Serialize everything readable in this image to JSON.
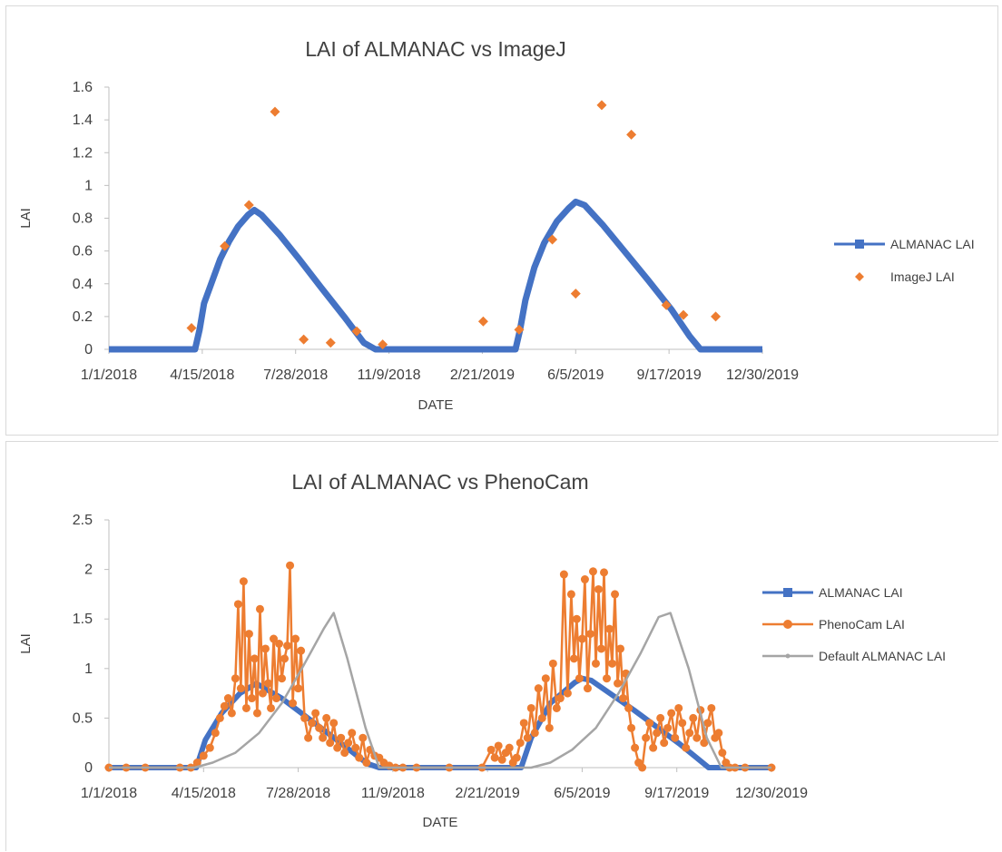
{
  "charts": [
    {
      "type": "scatter",
      "title": "LAI of ALMANAC vs ImageJ",
      "xlabel": "DATE",
      "ylabel": "LAI",
      "ylim": [
        0,
        1.6
      ],
      "yticks": [
        "0",
        "0.2",
        "0.4",
        "0.6",
        "0.8",
        "1",
        "1.2",
        "1.4",
        "1.6"
      ],
      "xlim": [
        "2018-01-01",
        "2019-12-30"
      ],
      "xticks": [
        "1/1/2018",
        "4/15/2018",
        "7/28/2018",
        "11/9/2018",
        "2/21/2019",
        "6/5/2019",
        "9/17/2019",
        "12/30/2019"
      ],
      "legend_position": "right",
      "series": [
        {
          "name": "ALMANAC LAI",
          "kind": "line",
          "color": "#4472c4",
          "x": [
            "2018-01-01",
            "2018-04-07",
            "2018-04-12",
            "2018-04-17",
            "2018-04-25",
            "2018-05-05",
            "2018-05-15",
            "2018-05-25",
            "2018-06-05",
            "2018-06-12",
            "2018-06-20",
            "2018-07-10",
            "2018-08-01",
            "2018-08-25",
            "2018-09-20",
            "2018-10-12",
            "2018-10-25",
            "2019-03-30",
            "2019-04-04",
            "2019-04-10",
            "2019-04-20",
            "2019-05-01",
            "2019-05-15",
            "2019-05-28",
            "2019-06-05",
            "2019-06-15",
            "2019-07-05",
            "2019-08-01",
            "2019-08-25",
            "2019-09-20",
            "2019-10-10",
            "2019-10-22",
            "2019-12-30"
          ],
          "y": [
            0,
            0,
            0.12,
            0.28,
            0.4,
            0.55,
            0.66,
            0.75,
            0.82,
            0.85,
            0.82,
            0.7,
            0.55,
            0.38,
            0.2,
            0.04,
            0,
            0,
            0.12,
            0.3,
            0.5,
            0.65,
            0.78,
            0.86,
            0.9,
            0.88,
            0.76,
            0.58,
            0.42,
            0.24,
            0.08,
            0,
            0
          ]
        },
        {
          "name": "ImageJ LAI",
          "kind": "scatter",
          "color": "#ed7d31",
          "x": [
            "2018-04-03",
            "2018-05-10",
            "2018-06-06",
            "2018-07-05",
            "2018-08-06",
            "2018-09-05",
            "2018-10-04",
            "2018-11-02",
            "2019-02-22",
            "2019-04-03",
            "2019-05-10",
            "2019-06-05",
            "2019-07-04",
            "2019-08-06",
            "2019-09-14",
            "2019-10-03",
            "2019-11-08"
          ],
          "y": [
            0.13,
            0.63,
            0.88,
            1.45,
            0.06,
            0.04,
            0.11,
            0.03,
            0.17,
            0.12,
            0.67,
            0.34,
            1.49,
            1.31,
            0.27,
            0.21,
            0.2
          ]
        }
      ]
    },
    {
      "type": "line",
      "title": "LAI of ALMANAC vs PhenoCam",
      "xlabel": "DATE",
      "ylabel": "LAI",
      "ylim": [
        0,
        2.5
      ],
      "yticks": [
        "0",
        "0.5",
        "1",
        "1.5",
        "2",
        "2.5"
      ],
      "xlim": [
        "2018-01-01",
        "2019-12-30"
      ],
      "xticks": [
        "1/1/2018",
        "4/15/2018",
        "7/28/2018",
        "11/9/2018",
        "2/21/2019",
        "6/5/2019",
        "9/17/2019",
        "12/30/2019"
      ],
      "legend_position": "right",
      "series": [
        {
          "name": "ALMANAC LAI",
          "kind": "line",
          "color": "#4472c4",
          "x": [
            "2018-01-01",
            "2018-04-07",
            "2018-04-17",
            "2018-05-05",
            "2018-05-25",
            "2018-06-12",
            "2018-07-10",
            "2018-08-25",
            "2018-10-12",
            "2018-10-25",
            "2019-03-30",
            "2019-04-10",
            "2019-05-01",
            "2019-05-28",
            "2019-06-05",
            "2019-06-15",
            "2019-08-01",
            "2019-09-20",
            "2019-10-22",
            "2019-12-30"
          ],
          "y": [
            0,
            0,
            0.28,
            0.55,
            0.75,
            0.85,
            0.7,
            0.38,
            0.04,
            0,
            0,
            0.3,
            0.65,
            0.86,
            0.9,
            0.88,
            0.58,
            0.24,
            0,
            0
          ]
        },
        {
          "name": "PhenoCam LAI",
          "kind": "line-markers",
          "color": "#ed7d31",
          "x": [
            "2018-01-01",
            "2018-01-20",
            "2018-02-10",
            "2018-03-20",
            "2018-04-01",
            "2018-04-08",
            "2018-04-15",
            "2018-04-22",
            "2018-04-28",
            "2018-05-03",
            "2018-05-08",
            "2018-05-12",
            "2018-05-16",
            "2018-05-20",
            "2018-05-23",
            "2018-05-26",
            "2018-05-29",
            "2018-06-01",
            "2018-06-04",
            "2018-06-07",
            "2018-06-10",
            "2018-06-13",
            "2018-06-16",
            "2018-06-19",
            "2018-06-22",
            "2018-06-25",
            "2018-06-28",
            "2018-07-01",
            "2018-07-04",
            "2018-07-07",
            "2018-07-10",
            "2018-07-13",
            "2018-07-16",
            "2018-07-19",
            "2018-07-22",
            "2018-07-25",
            "2018-07-28",
            "2018-07-31",
            "2018-08-04",
            "2018-08-08",
            "2018-08-12",
            "2018-08-16",
            "2018-08-20",
            "2018-08-24",
            "2018-08-28",
            "2018-09-01",
            "2018-09-05",
            "2018-09-09",
            "2018-09-13",
            "2018-09-17",
            "2018-09-21",
            "2018-09-25",
            "2018-09-29",
            "2018-10-03",
            "2018-10-07",
            "2018-10-11",
            "2018-10-15",
            "2018-10-20",
            "2018-10-25",
            "2018-10-30",
            "2018-11-05",
            "2018-11-12",
            "2018-11-20",
            "2018-12-05",
            "2019-01-10",
            "2019-02-15",
            "2019-02-25",
            "2019-03-01",
            "2019-03-05",
            "2019-03-09",
            "2019-03-13",
            "2019-03-17",
            "2019-03-21",
            "2019-03-25",
            "2019-03-29",
            "2019-04-02",
            "2019-04-06",
            "2019-04-10",
            "2019-04-14",
            "2019-04-18",
            "2019-04-22",
            "2019-04-26",
            "2019-04-30",
            "2019-05-04",
            "2019-05-08",
            "2019-05-12",
            "2019-05-16",
            "2019-05-20",
            "2019-05-24",
            "2019-05-27",
            "2019-05-30",
            "2019-06-02",
            "2019-06-05",
            "2019-06-08",
            "2019-06-11",
            "2019-06-14",
            "2019-06-17",
            "2019-06-20",
            "2019-06-23",
            "2019-06-26",
            "2019-06-29",
            "2019-07-02",
            "2019-07-05",
            "2019-07-08",
            "2019-07-11",
            "2019-07-14",
            "2019-07-17",
            "2019-07-20",
            "2019-07-23",
            "2019-07-26",
            "2019-07-29",
            "2019-08-02",
            "2019-08-06",
            "2019-08-10",
            "2019-08-14",
            "2019-08-18",
            "2019-08-22",
            "2019-08-26",
            "2019-08-30",
            "2019-09-03",
            "2019-09-07",
            "2019-09-11",
            "2019-09-15",
            "2019-09-19",
            "2019-09-23",
            "2019-09-27",
            "2019-10-01",
            "2019-10-05",
            "2019-10-09",
            "2019-10-13",
            "2019-10-17",
            "2019-10-21",
            "2019-10-25",
            "2019-10-29",
            "2019-11-02",
            "2019-11-06",
            "2019-11-10",
            "2019-11-14",
            "2019-11-20",
            "2019-12-01",
            "2019-12-30"
          ],
          "y": [
            0,
            0,
            0,
            0,
            0,
            0.05,
            0.12,
            0.2,
            0.35,
            0.5,
            0.62,
            0.7,
            0.55,
            0.9,
            1.65,
            0.8,
            1.88,
            0.6,
            1.35,
            0.7,
            1.1,
            0.55,
            1.6,
            0.75,
            1.2,
            0.85,
            0.6,
            1.3,
            0.7,
            1.25,
            0.9,
            1.1,
            1.23,
            2.04,
            0.65,
            1.3,
            0.8,
            1.18,
            0.5,
            0.3,
            0.45,
            0.55,
            0.4,
            0.3,
            0.5,
            0.25,
            0.45,
            0.2,
            0.3,
            0.15,
            0.25,
            0.35,
            0.2,
            0.1,
            0.3,
            0.05,
            0.18,
            0.12,
            0.1,
            0.05,
            0.02,
            0,
            0,
            0,
            0,
            0,
            0.18,
            0.1,
            0.22,
            0.08,
            0.15,
            0.2,
            0.05,
            0.1,
            0.25,
            0.45,
            0.3,
            0.6,
            0.35,
            0.8,
            0.5,
            0.9,
            0.4,
            1.05,
            0.6,
            0.7,
            1.95,
            0.75,
            1.75,
            1.1,
            1.5,
            0.9,
            1.3,
            1.9,
            0.8,
            1.35,
            1.98,
            1.05,
            1.8,
            1.2,
            1.97,
            0.9,
            1.4,
            1.05,
            1.75,
            0.85,
            1.2,
            0.7,
            0.95,
            0.6,
            0.4,
            0.2,
            0.05,
            0,
            0.3,
            0.45,
            0.2,
            0.35,
            0.5,
            0.25,
            0.4,
            0.55,
            0.3,
            0.6,
            0.45,
            0.2,
            0.35,
            0.5,
            0.3,
            0.58,
            0.25,
            0.45,
            0.6,
            0.3,
            0.35,
            0.15,
            0.05,
            0,
            0,
            0,
            0
          ]
        },
        {
          "name": "Default ALMANAC LAI",
          "kind": "line",
          "color": "#a5a5a5",
          "x": [
            "2018-01-01",
            "2018-04-05",
            "2018-04-25",
            "2018-05-20",
            "2018-06-15",
            "2018-07-10",
            "2018-08-01",
            "2018-08-25",
            "2018-09-05",
            "2018-09-20",
            "2018-10-10",
            "2018-10-25",
            "2019-04-10",
            "2019-05-01",
            "2019-05-25",
            "2019-06-20",
            "2019-07-15",
            "2019-08-08",
            "2019-08-28",
            "2019-09-10",
            "2019-09-30",
            "2019-10-20",
            "2019-11-05",
            "2019-12-30"
          ],
          "y": [
            0,
            0,
            0.05,
            0.15,
            0.35,
            0.65,
            1.0,
            1.4,
            1.56,
            1.1,
            0.4,
            0,
            0,
            0.05,
            0.18,
            0.4,
            0.75,
            1.15,
            1.52,
            1.56,
            1.0,
            0.3,
            0,
            0
          ]
        }
      ]
    }
  ]
}
